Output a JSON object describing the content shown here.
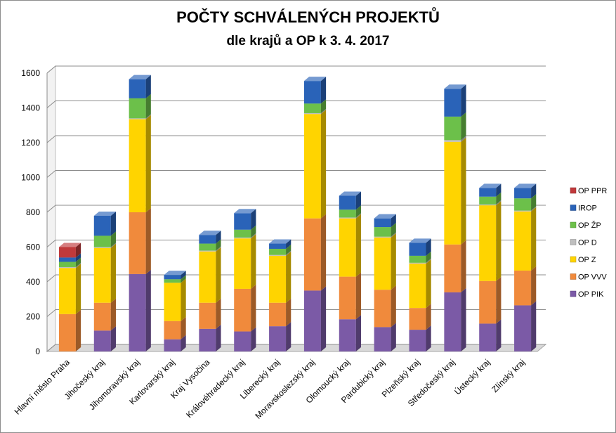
{
  "chart_data": {
    "type": "bar",
    "stacked": true,
    "title": "POČTY SCHVÁLENÝCH PROJEKTŮ",
    "subtitle": "dle krajů a OP k 3. 4. 2017",
    "ylim": [
      0,
      1600
    ],
    "yticks": [
      0,
      200,
      400,
      600,
      800,
      1000,
      1200,
      1400,
      1600
    ],
    "grid": true,
    "legend_position": "right",
    "categories": [
      "Hlavní město Praha",
      "Jihočeský kraj",
      "Jihomoravský kraj",
      "Karlovarský kraj",
      "Kraj Vysočina",
      "Královéhradecký kraj",
      "Liberecký kraj",
      "Moravskoslezský kraj",
      "Olomoucký kraj",
      "Pardubický kraj",
      "Plzeňský kraj",
      "Středočeský kraj",
      "Ústecký kraj",
      "Zlínský kraj"
    ],
    "series": [
      {
        "name": "OP PIK",
        "color": "#7b5aa6",
        "values": [
          0,
          120,
          445,
          70,
          130,
          115,
          145,
          350,
          185,
          140,
          125,
          340,
          160,
          265
        ]
      },
      {
        "name": "OP VVV",
        "color": "#f08a3c",
        "values": [
          215,
          160,
          355,
          105,
          150,
          245,
          135,
          415,
          245,
          215,
          125,
          275,
          245,
          200
        ]
      },
      {
        "name": "OP Z",
        "color": "#ffd400",
        "values": [
          265,
          315,
          535,
          220,
          295,
          290,
          270,
          600,
          335,
          300,
          255,
          590,
          435,
          340
        ]
      },
      {
        "name": "OP D",
        "color": "#bfbfbf",
        "values": [
          5,
          5,
          5,
          0,
          5,
          5,
          5,
          5,
          5,
          5,
          5,
          10,
          5,
          5
        ]
      },
      {
        "name": "OP ŽP",
        "color": "#6cc04a",
        "values": [
          30,
          65,
          115,
          20,
          40,
          45,
          35,
          55,
          45,
          55,
          40,
          135,
          45,
          70
        ]
      },
      {
        "name": "IROP",
        "color": "#2a63b8",
        "values": [
          25,
          115,
          110,
          25,
          50,
          95,
          30,
          130,
          80,
          50,
          75,
          160,
          50,
          60
        ]
      },
      {
        "name": "OP PPR",
        "color": "#c0393b",
        "values": [
          60,
          0,
          0,
          0,
          0,
          0,
          0,
          0,
          0,
          0,
          0,
          0,
          0,
          0
        ]
      }
    ],
    "legend_order": [
      "OP PPR",
      "IROP",
      "OP ŽP",
      "OP D",
      "OP Z",
      "OP VVV",
      "OP PIK"
    ]
  }
}
